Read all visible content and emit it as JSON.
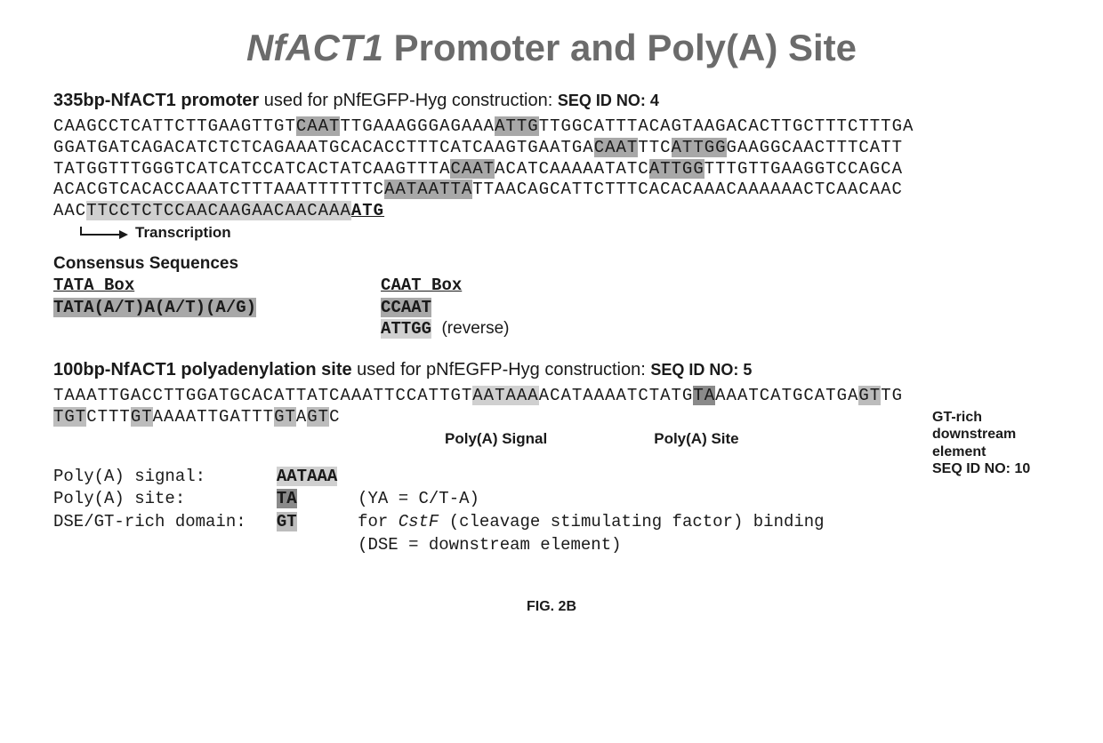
{
  "title": {
    "italic": "NfACT1",
    "rest": " Promoter and Poly(A) Site"
  },
  "promoter": {
    "heading_bold": "335bp-NfACT1 promoter",
    "heading_rest": " used for pNfEGFP-Hyg construction: ",
    "seqid": "SEQ ID NO: 4",
    "line1": {
      "a": "CAAGCCTCATTCTTGAAGTTGT",
      "h1": "CAAT",
      "b": "TTGAAAGGGAGAAA",
      "h2": "ATTG",
      "c": "TTGGCATTTACAGTAAGACACTTGCTTTCTTTGA"
    },
    "line2": {
      "a": "GGATGATCAGACATCTCTCAGAAATGCACACCTTTCATCAAGTGAATGA",
      "h1": "CAAT",
      "b": "TTC",
      "h2": "ATTGG",
      "c": "GAAGGCAACTTTCATT"
    },
    "line3": {
      "a": "TATGGTTTGGGTCATCATCCATCACTATCAAGTTTA",
      "h1": "CAAT",
      "b": "ACATCAAAAATATC",
      "h2": "ATTGG",
      "c": "TTTGTTGAAGGTCCAGCA"
    },
    "line4": {
      "a": "ACACGTCACACCAAATCTTTAAATTTTTTC",
      "h1": "AATAATTA",
      "b": "TTAACAGCATTCTTTCACACAAACAAAAAACTCAACAAC"
    },
    "line5": {
      "a": "AAC",
      "h1": "TTCCTCTCCAACAAGAACAACAAA",
      "atg": "ATG"
    },
    "transcription": "Transcription"
  },
  "consensus": {
    "heading": "Consensus Sequences",
    "tata": {
      "label": "TATA Box",
      "seq": "TATA(A/T)A(A/T)(A/G)"
    },
    "caat": {
      "label": "CAAT Box",
      "seq1": "CCAAT",
      "seq2": "ATTGG",
      "note": "(reverse)"
    }
  },
  "polyA": {
    "heading_bold": "100bp-NfACT1 polyadenylation site",
    "heading_rest": " used for pNfEGFP-Hyg  construction: ",
    "seqid": "SEQ ID NO: 5",
    "line1": {
      "a": "TAAATTGACCTTGGATGCACATTATCAAATTCCATTGT",
      "sig": "AATAAA",
      "b": "ACATAAAATCTATG",
      "site": "TA",
      "c": "AAATCATGCATGA",
      "gt1": "GT",
      "d": "TG"
    },
    "line2": {
      "gt1": "TGT",
      "a": "CTTT",
      "gt2": "GT",
      "b": "AAAATTGATTT",
      "gt3": "GT",
      "c": "A",
      "gt4": "GT",
      "d": "C"
    },
    "label_signal": "Poly(A) Signal",
    "label_site": "Poly(A) Site",
    "side_l1": "GT-rich",
    "side_l2": "downstream",
    "side_l3": "element",
    "side_l4": "SEQ ID NO: 10"
  },
  "defs": {
    "r1_label": "Poly(A) signal:",
    "r1_val": "AATAAA",
    "r2_label": "Poly(A) site:",
    "r2_val": "TA",
    "r2_note": "(YA = C/T-A)",
    "r3_label": "DSE/GT-rich domain:",
    "r3_val": "GT",
    "r3_note_a": "for ",
    "r3_note_ital": "CstF",
    "r3_note_b": " (cleavage stimulating factor) binding",
    "r4_note": "(DSE = downstream element)"
  },
  "figure": "FIG. 2B"
}
